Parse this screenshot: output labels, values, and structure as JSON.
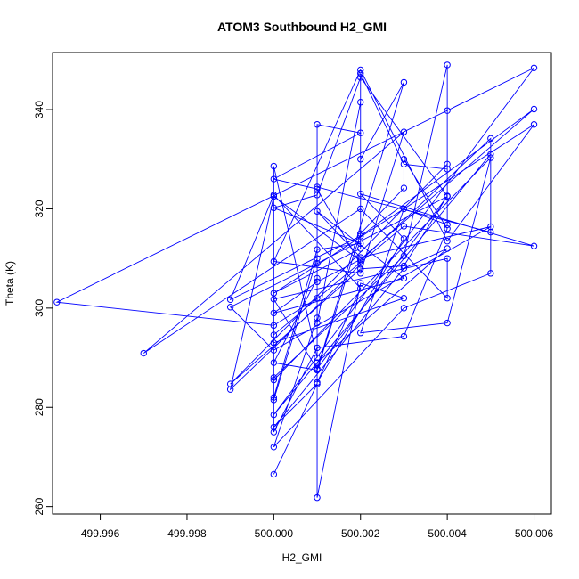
{
  "chart_data": {
    "type": "line",
    "title": "ATOM3 Southbound H2_GMI",
    "xlabel": "H2_GMI",
    "ylabel": "Theta (K)",
    "xlim": [
      499.9949,
      500.0064
    ],
    "ylim": [
      258.5,
      351.5
    ],
    "x_ticks": [
      499.996,
      499.998,
      500.0,
      500.002,
      500.004,
      500.006
    ],
    "x_tick_labels": [
      "499.996",
      "499.998",
      "500.000",
      "500.002",
      "500.004",
      "500.006"
    ],
    "y_ticks": [
      260,
      280,
      300,
      320,
      340
    ],
    "y_tick_labels": [
      "260",
      "280",
      "300",
      "320",
      "340"
    ],
    "grid": false,
    "legend": "none",
    "series": [
      {
        "color": "#0000ff",
        "marker": "open-circle",
        "points": [
          [
            500.0,
            266.5
          ],
          [
            500.001,
            284.7
          ],
          [
            500.0,
            276.0
          ],
          [
            500.003,
            308.0
          ],
          [
            500.004,
            312.0
          ],
          [
            500.001,
            289.0
          ],
          [
            500.001,
            261.8
          ],
          [
            500.002,
            305.0
          ],
          [
            500.003,
            302.0
          ],
          [
            500.0,
            293.0
          ],
          [
            500.0,
            281.5
          ],
          [
            500.001,
            310.0
          ],
          [
            500.001,
            302.0
          ],
          [
            500.0,
            296.5
          ],
          [
            499.995,
            301.2
          ],
          [
            500.006,
            348.4
          ],
          [
            500.0,
            278.5
          ],
          [
            500.005,
            331.0
          ],
          [
            500.005,
            307.0
          ],
          [
            500.003,
            300.0
          ],
          [
            500.0,
            272.0
          ],
          [
            500.001,
            298.0
          ],
          [
            500.001,
            306.0
          ],
          [
            500.0,
            289.0
          ],
          [
            500.001,
            287.5
          ],
          [
            500.002,
            315.0
          ],
          [
            500.003,
            324.2
          ],
          [
            500.003,
            330.0
          ],
          [
            500.004,
            316.0
          ],
          [
            500.003,
            294.3
          ],
          [
            500.001,
            292.0
          ],
          [
            500.0,
            275.0
          ],
          [
            500.0,
            286.0
          ],
          [
            500.003,
            310.5
          ],
          [
            500.004,
            349.0
          ],
          [
            500.004,
            339.8
          ],
          [
            500.004,
            328.0
          ],
          [
            500.003,
            329.0
          ],
          [
            500.002,
            347.3
          ],
          [
            500.002,
            330.0
          ],
          [
            500.003,
            345.5
          ],
          [
            500.001,
            287.7
          ],
          [
            500.0,
            301.8
          ],
          [
            500.004,
            310.0
          ],
          [
            500.004,
            302.0
          ],
          [
            500.002,
            320.0
          ],
          [
            499.997,
            290.9
          ],
          [
            500.003,
            335.5
          ],
          [
            500.002,
            307.0
          ],
          [
            500.0,
            309.4
          ],
          [
            500.002,
            348.0
          ],
          [
            500.004,
            313.5
          ],
          [
            500.006,
            337.0
          ],
          [
            500.0,
            303.0
          ],
          [
            500.002,
            312.0
          ],
          [
            500.002,
            341.5
          ],
          [
            500.001,
            297.0
          ],
          [
            500.001,
            337.0
          ],
          [
            500.002,
            335.3
          ],
          [
            500.0,
            326.0
          ],
          [
            500.001,
            324.0
          ],
          [
            500.002,
            308.8
          ],
          [
            499.999,
            283.6
          ],
          [
            500.0,
            322.5
          ],
          [
            500.002,
            309.5
          ],
          [
            500.005,
            334.2
          ],
          [
            500.005,
            315.3
          ],
          [
            500.001,
            324.4
          ],
          [
            500.001,
            290.0
          ],
          [
            500.0,
            328.6
          ],
          [
            500.0,
            282.0
          ],
          [
            500.001,
            311.8
          ],
          [
            500.002,
            313.0
          ],
          [
            500.0,
            320.2
          ],
          [
            500.001,
            322.8
          ],
          [
            500.002,
            346.5
          ],
          [
            500.004,
            322.6
          ],
          [
            500.003,
            308.5
          ],
          [
            500.002,
            307.9
          ],
          [
            499.999,
            284.7
          ],
          [
            500.004,
            329.0
          ],
          [
            500.004,
            316.8
          ],
          [
            500.003,
            320.0
          ],
          [
            500.002,
            295.0
          ],
          [
            500.004,
            297.0
          ],
          [
            500.005,
            330.3
          ],
          [
            500.0,
            285.5
          ],
          [
            500.0,
            294.6
          ],
          [
            500.003,
            316.5
          ],
          [
            500.006,
            312.5
          ],
          [
            500.002,
            323.0
          ],
          [
            500.003,
            314.0
          ],
          [
            500.001,
            285.0
          ],
          [
            500.002,
            304.0
          ],
          [
            500.0,
            322.8
          ],
          [
            499.999,
            301.7
          ],
          [
            500.002,
            314.5
          ],
          [
            500.006,
            340.1
          ],
          [
            500.002,
            309.8
          ],
          [
            500.001,
            305.3
          ],
          [
            500.0,
            299.0
          ],
          [
            500.003,
            306.0
          ],
          [
            500.001,
            319.5
          ],
          [
            500.002,
            310.2
          ],
          [
            500.005,
            316.4
          ],
          [
            500.0,
            291.5
          ],
          [
            499.999,
            300.2
          ],
          [
            500.001,
            309.0
          ],
          [
            500.004,
            322.5
          ],
          [
            500.001,
            287.8
          ]
        ]
      }
    ]
  }
}
